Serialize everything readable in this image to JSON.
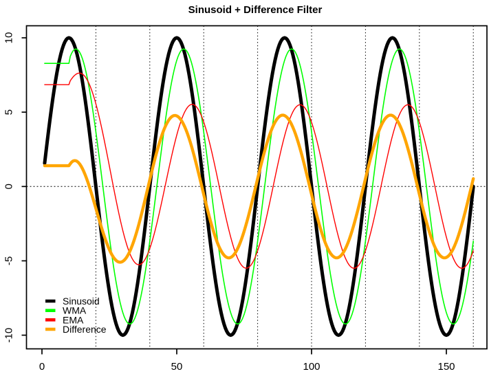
{
  "figure": {
    "kind": "r-base-graphics-plot",
    "background": "#ffffff",
    "foreground": "#000000"
  },
  "chart_data": {
    "type": "line",
    "title": "Sinusoid + Difference Filter",
    "xlabel": "",
    "ylabel": "",
    "x_data_range": [
      1,
      160
    ],
    "xlim": [
      -5.74,
      165.05
    ],
    "ylim": [
      -10.92,
      10.81
    ],
    "x_ticks": [
      0,
      50,
      100,
      150
    ],
    "x_tick_labels": [
      "0",
      "50",
      "100",
      "150"
    ],
    "y_ticks": [
      -10,
      -5,
      0,
      5,
      10
    ],
    "y_tick_labels": [
      "-10",
      "-5",
      "0",
      "5",
      "10"
    ],
    "grid": {
      "vlines_x": [
        20,
        40,
        60,
        80,
        100,
        120,
        140,
        160
      ],
      "hline_y": 0,
      "style": "dotted",
      "color": "#000000"
    },
    "legend": {
      "position": "bottom-left",
      "box": false,
      "entries": [
        {
          "label": "Sinusoid",
          "color": "#000000"
        },
        {
          "label": "WMA",
          "color": "#00FF00"
        },
        {
          "label": "EMA",
          "color": "#FF0000"
        },
        {
          "label": "Difference",
          "color": "#FFA500"
        }
      ]
    },
    "series": [
      {
        "name": "Sinusoid",
        "color": "#000000",
        "line_width": 5,
        "model": {
          "x_start": 1,
          "x_end": 160,
          "amplitude": 10,
          "period": 40,
          "phase_shift": 0
        },
        "key_points": [
          [
            1,
            1.6
          ],
          [
            10,
            10
          ],
          [
            20,
            0
          ],
          [
            30,
            -10
          ],
          [
            50,
            10
          ],
          [
            70,
            -10
          ],
          [
            90,
            10
          ],
          [
            110,
            -10
          ],
          [
            130,
            10
          ],
          [
            150,
            -10
          ],
          [
            160,
            0
          ]
        ]
      },
      {
        "name": "WMA",
        "color": "#00FF00",
        "line_width": 1.6,
        "model": {
          "x_start": 1,
          "x_end": 160,
          "flat_until": 10,
          "flat_value": 8.28,
          "amplitude": 9.25,
          "period": 40,
          "phase_shift": 2.6
        },
        "key_points": [
          [
            1,
            8.3
          ],
          [
            10,
            8.3
          ],
          [
            12.6,
            9.25
          ],
          [
            22.6,
            0
          ],
          [
            32.6,
            -9.25
          ],
          [
            52.6,
            9.25
          ],
          [
            72.6,
            -9.25
          ],
          [
            92.6,
            9.25
          ],
          [
            112.6,
            -9.25
          ],
          [
            132.6,
            9.25
          ],
          [
            152.6,
            -9.25
          ],
          [
            160,
            -3.5
          ]
        ]
      },
      {
        "name": "EMA",
        "color": "#FF0000",
        "line_width": 1.4,
        "model": {
          "x_start": 1,
          "x_end": 160,
          "flat_until": 10,
          "flat_value": 6.85,
          "amplitude": 5.5,
          "period": 40,
          "phase_shift": 5.75,
          "transient": {
            "amp": 3.56,
            "decay": 0.9
          }
        },
        "key_points": [
          [
            1,
            6.85
          ],
          [
            10,
            6.85
          ],
          [
            14,
            7.55
          ],
          [
            26.3,
            0
          ],
          [
            35.8,
            -5.4
          ],
          [
            55.7,
            5.5
          ],
          [
            75.7,
            -5.5
          ],
          [
            95.5,
            5.5
          ],
          [
            115.7,
            -5.5
          ],
          [
            135.7,
            5.5
          ],
          [
            155.7,
            -5.5
          ],
          [
            160,
            -4.3
          ]
        ]
      },
      {
        "name": "Difference",
        "color": "#FFA500",
        "line_width": 4.4,
        "model": {
          "x_start": 1,
          "x_end": 160,
          "flat_until": 10,
          "flat_value": 1.4,
          "amplitude": 4.8,
          "period": 40,
          "phase_shift": -0.7,
          "transient": {
            "amp": -3.4,
            "decay": 0.88
          }
        },
        "key_points": [
          [
            1,
            1.4
          ],
          [
            10,
            1.4
          ],
          [
            12,
            1.75
          ],
          [
            17.5,
            0
          ],
          [
            29,
            -5.2
          ],
          [
            39.4,
            0
          ],
          [
            49,
            4.8
          ],
          [
            69,
            -4.85
          ],
          [
            89,
            4.8
          ],
          [
            109,
            -4.85
          ],
          [
            129,
            4.8
          ],
          [
            149,
            -4.85
          ],
          [
            160,
            0.4
          ]
        ]
      }
    ]
  }
}
